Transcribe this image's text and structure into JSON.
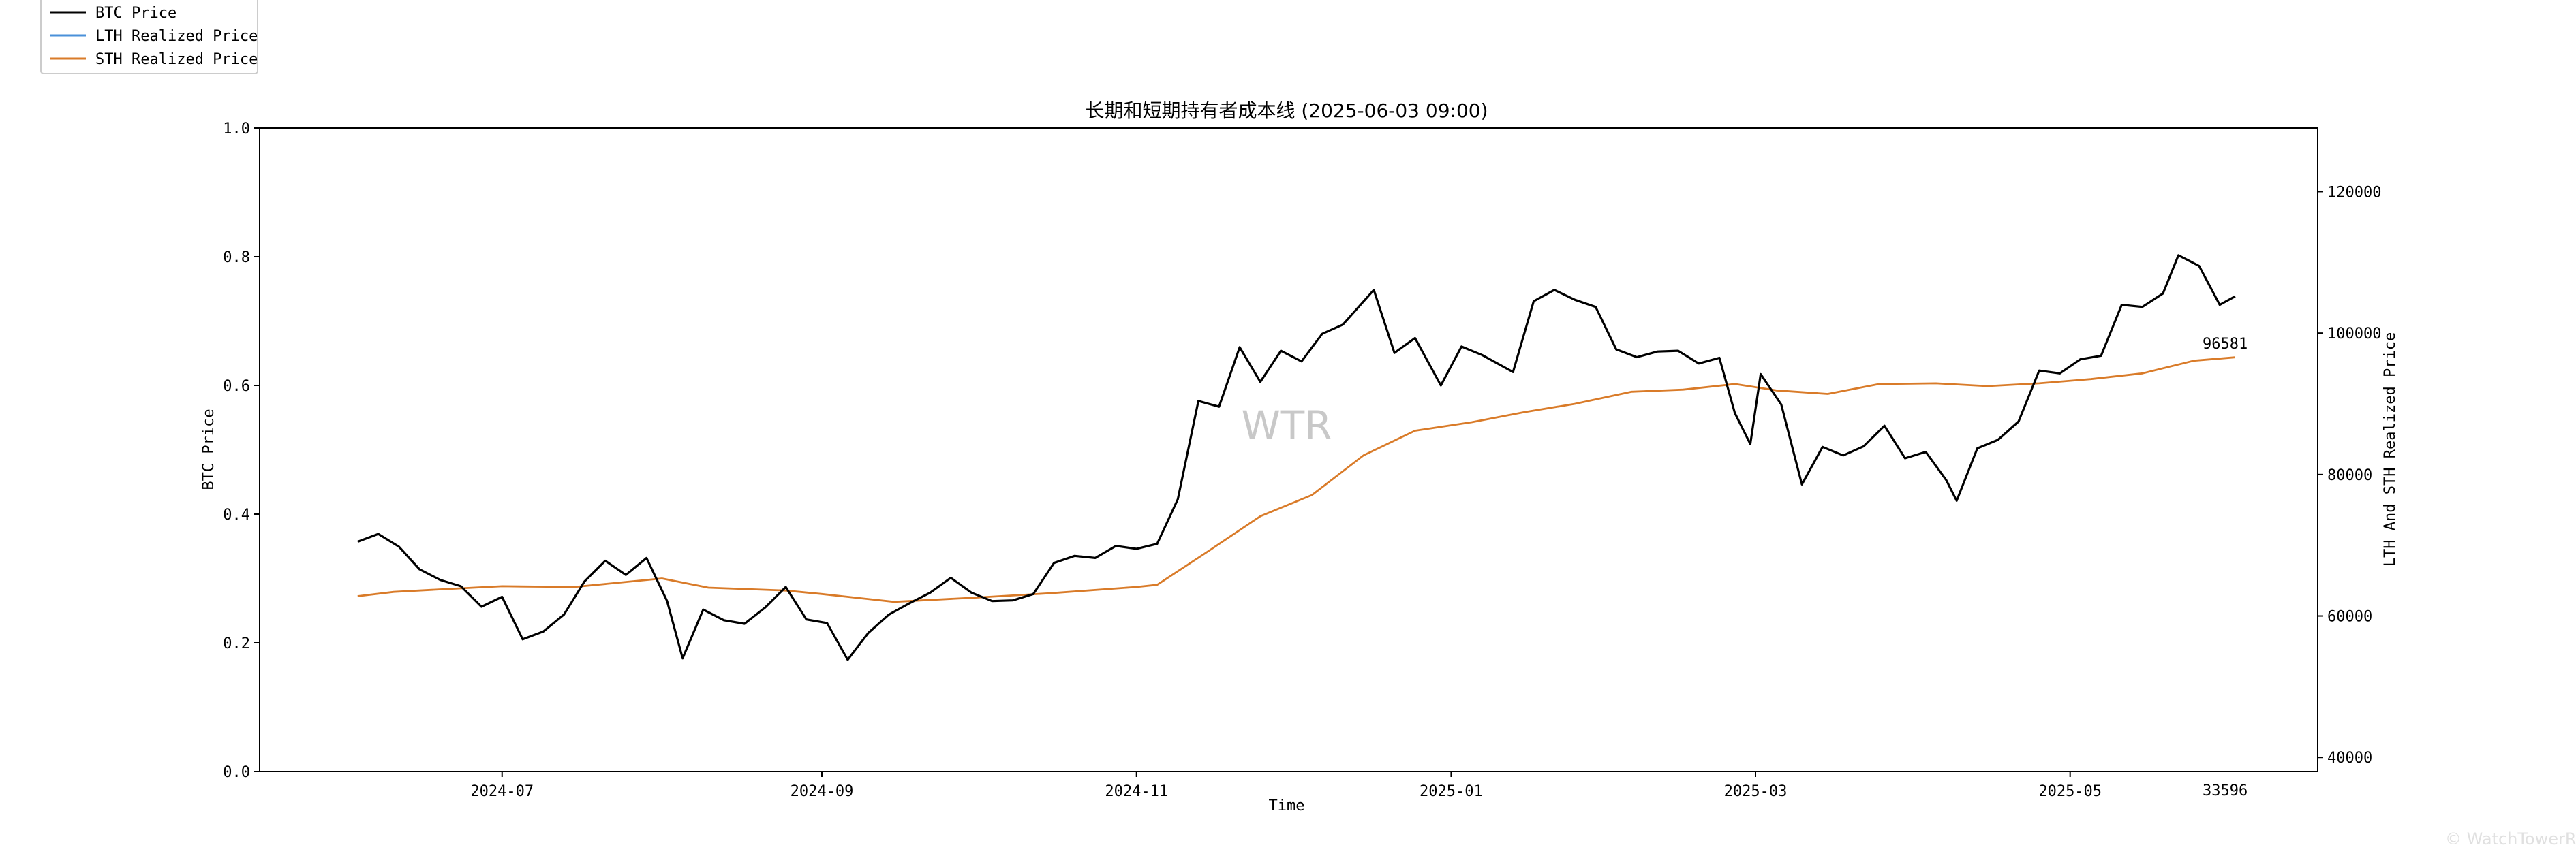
{
  "chart_data": {
    "type": "line",
    "title": "长期和短期持有者成本线 (2025-06-03 09:00)",
    "xlabel": "Time",
    "ylabel_left": "BTC Price",
    "ylabel_right": "LTH And STH Realized Price",
    "x_ticks": [
      "2024-07",
      "2024-09",
      "2024-11",
      "2025-01",
      "2025-03",
      "2025-05"
    ],
    "x_tick_dates": [
      "2024-07-01",
      "2024-09-01",
      "2024-11-01",
      "2025-01-01",
      "2025-03-01",
      "2025-05-01"
    ],
    "xlim": [
      "2024-05-15",
      "2025-06-18"
    ],
    "y_left_ticks": [
      "0.0",
      "0.2",
      "0.4",
      "0.6",
      "0.8",
      "1.0"
    ],
    "y_left_lim": [
      0,
      1
    ],
    "y_right_ticks": [
      "40000",
      "60000",
      "80000",
      "100000",
      "120000"
    ],
    "y_right_lim": [
      38000,
      129000
    ],
    "grid": false,
    "legend_position": "top-left",
    "watermark": "WTR",
    "annotations": [
      {
        "text": "96581",
        "x": "2025-06-01",
        "y": 96581
      },
      {
        "text": "33596",
        "x": "2025-06-01",
        "y": null
      }
    ],
    "series": [
      {
        "name": "BTC Price",
        "color": "#000000",
        "points": [
          [
            "2024-06-03",
            70500
          ],
          [
            "2024-06-07",
            71600
          ],
          [
            "2024-06-11",
            69800
          ],
          [
            "2024-06-15",
            66600
          ],
          [
            "2024-06-19",
            65100
          ],
          [
            "2024-06-23",
            64200
          ],
          [
            "2024-06-27",
            61300
          ],
          [
            "2024-07-01",
            62700
          ],
          [
            "2024-07-05",
            56700
          ],
          [
            "2024-07-09",
            57800
          ],
          [
            "2024-07-13",
            60200
          ],
          [
            "2024-07-17",
            64900
          ],
          [
            "2024-07-21",
            67800
          ],
          [
            "2024-07-25",
            65800
          ],
          [
            "2024-07-29",
            68200
          ],
          [
            "2024-08-02",
            62100
          ],
          [
            "2024-08-05",
            54000
          ],
          [
            "2024-08-09",
            60900
          ],
          [
            "2024-08-13",
            59400
          ],
          [
            "2024-08-17",
            58900
          ],
          [
            "2024-08-21",
            61200
          ],
          [
            "2024-08-25",
            64100
          ],
          [
            "2024-08-29",
            59500
          ],
          [
            "2024-09-02",
            59000
          ],
          [
            "2024-09-06",
            53800
          ],
          [
            "2024-09-10",
            57600
          ],
          [
            "2024-09-14",
            60200
          ],
          [
            "2024-09-18",
            61800
          ],
          [
            "2024-09-22",
            63300
          ],
          [
            "2024-09-26",
            65400
          ],
          [
            "2024-09-30",
            63300
          ],
          [
            "2024-10-04",
            62100
          ],
          [
            "2024-10-08",
            62200
          ],
          [
            "2024-10-12",
            63100
          ],
          [
            "2024-10-16",
            67500
          ],
          [
            "2024-10-20",
            68500
          ],
          [
            "2024-10-24",
            68200
          ],
          [
            "2024-10-28",
            69900
          ],
          [
            "2024-11-01",
            69500
          ],
          [
            "2024-11-05",
            70200
          ],
          [
            "2024-11-09",
            76500
          ],
          [
            "2024-11-13",
            90400
          ],
          [
            "2024-11-17",
            89600
          ],
          [
            "2024-11-21",
            98000
          ],
          [
            "2024-11-25",
            93100
          ],
          [
            "2024-11-29",
            97500
          ],
          [
            "2024-12-03",
            96000
          ],
          [
            "2024-12-07",
            99900
          ],
          [
            "2024-12-11",
            101200
          ],
          [
            "2024-12-17",
            106100
          ],
          [
            "2024-12-21",
            97200
          ],
          [
            "2024-12-25",
            99300
          ],
          [
            "2024-12-30",
            92600
          ],
          [
            "2025-01-03",
            98100
          ],
          [
            "2025-01-07",
            96900
          ],
          [
            "2025-01-13",
            94500
          ],
          [
            "2025-01-17",
            104500
          ],
          [
            "2025-01-21",
            106100
          ],
          [
            "2025-01-25",
            104700
          ],
          [
            "2025-01-29",
            103700
          ],
          [
            "2025-02-02",
            97700
          ],
          [
            "2025-02-06",
            96600
          ],
          [
            "2025-02-10",
            97400
          ],
          [
            "2025-02-14",
            97500
          ],
          [
            "2025-02-18",
            95700
          ],
          [
            "2025-02-22",
            96500
          ],
          [
            "2025-02-25",
            88700
          ],
          [
            "2025-02-28",
            84300
          ],
          [
            "2025-03-02",
            94200
          ],
          [
            "2025-03-06",
            89900
          ],
          [
            "2025-03-10",
            78600
          ],
          [
            "2025-03-14",
            83900
          ],
          [
            "2025-03-18",
            82700
          ],
          [
            "2025-03-22",
            84000
          ],
          [
            "2025-03-26",
            86900
          ],
          [
            "2025-03-30",
            82300
          ],
          [
            "2025-04-03",
            83200
          ],
          [
            "2025-04-07",
            79200
          ],
          [
            "2025-04-09",
            76300
          ],
          [
            "2025-04-13",
            83700
          ],
          [
            "2025-04-17",
            84900
          ],
          [
            "2025-04-21",
            87500
          ],
          [
            "2025-04-25",
            94700
          ],
          [
            "2025-04-29",
            94300
          ],
          [
            "2025-05-03",
            96300
          ],
          [
            "2025-05-07",
            96800
          ],
          [
            "2025-05-11",
            104000
          ],
          [
            "2025-05-15",
            103700
          ],
          [
            "2025-05-19",
            105600
          ],
          [
            "2025-05-22",
            111000
          ],
          [
            "2025-05-26",
            109500
          ],
          [
            "2025-05-30",
            104000
          ],
          [
            "2025-06-02",
            105200
          ]
        ]
      },
      {
        "name": "LTH Realized Price",
        "color": "#4a90d9",
        "points": [
          [
            "2025-06-01",
            33596
          ]
        ]
      },
      {
        "name": "STH Realized Price",
        "color": "#d97b29",
        "points": [
          [
            "2024-06-03",
            62800
          ],
          [
            "2024-06-10",
            63400
          ],
          [
            "2024-06-20",
            63800
          ],
          [
            "2024-07-01",
            64200
          ],
          [
            "2024-07-15",
            64100
          ],
          [
            "2024-08-01",
            65300
          ],
          [
            "2024-08-10",
            64000
          ],
          [
            "2024-08-25",
            63600
          ],
          [
            "2024-09-01",
            63100
          ],
          [
            "2024-09-15",
            62000
          ],
          [
            "2024-10-01",
            62600
          ],
          [
            "2024-10-15",
            63200
          ],
          [
            "2024-11-01",
            64100
          ],
          [
            "2024-11-05",
            64400
          ],
          [
            "2024-11-15",
            69200
          ],
          [
            "2024-11-25",
            74100
          ],
          [
            "2024-12-05",
            77100
          ],
          [
            "2024-12-15",
            82700
          ],
          [
            "2024-12-25",
            86200
          ],
          [
            "2025-01-05",
            87400
          ],
          [
            "2025-01-15",
            88800
          ],
          [
            "2025-01-25",
            90000
          ],
          [
            "2025-02-05",
            91700
          ],
          [
            "2025-02-15",
            92000
          ],
          [
            "2025-02-25",
            92800
          ],
          [
            "2025-03-05",
            91900
          ],
          [
            "2025-03-15",
            91400
          ],
          [
            "2025-03-25",
            92800
          ],
          [
            "2025-04-05",
            92900
          ],
          [
            "2025-04-15",
            92500
          ],
          [
            "2025-04-25",
            92900
          ],
          [
            "2025-05-05",
            93500
          ],
          [
            "2025-05-15",
            94300
          ],
          [
            "2025-05-25",
            96100
          ],
          [
            "2025-06-02",
            96581
          ]
        ]
      }
    ]
  }
}
